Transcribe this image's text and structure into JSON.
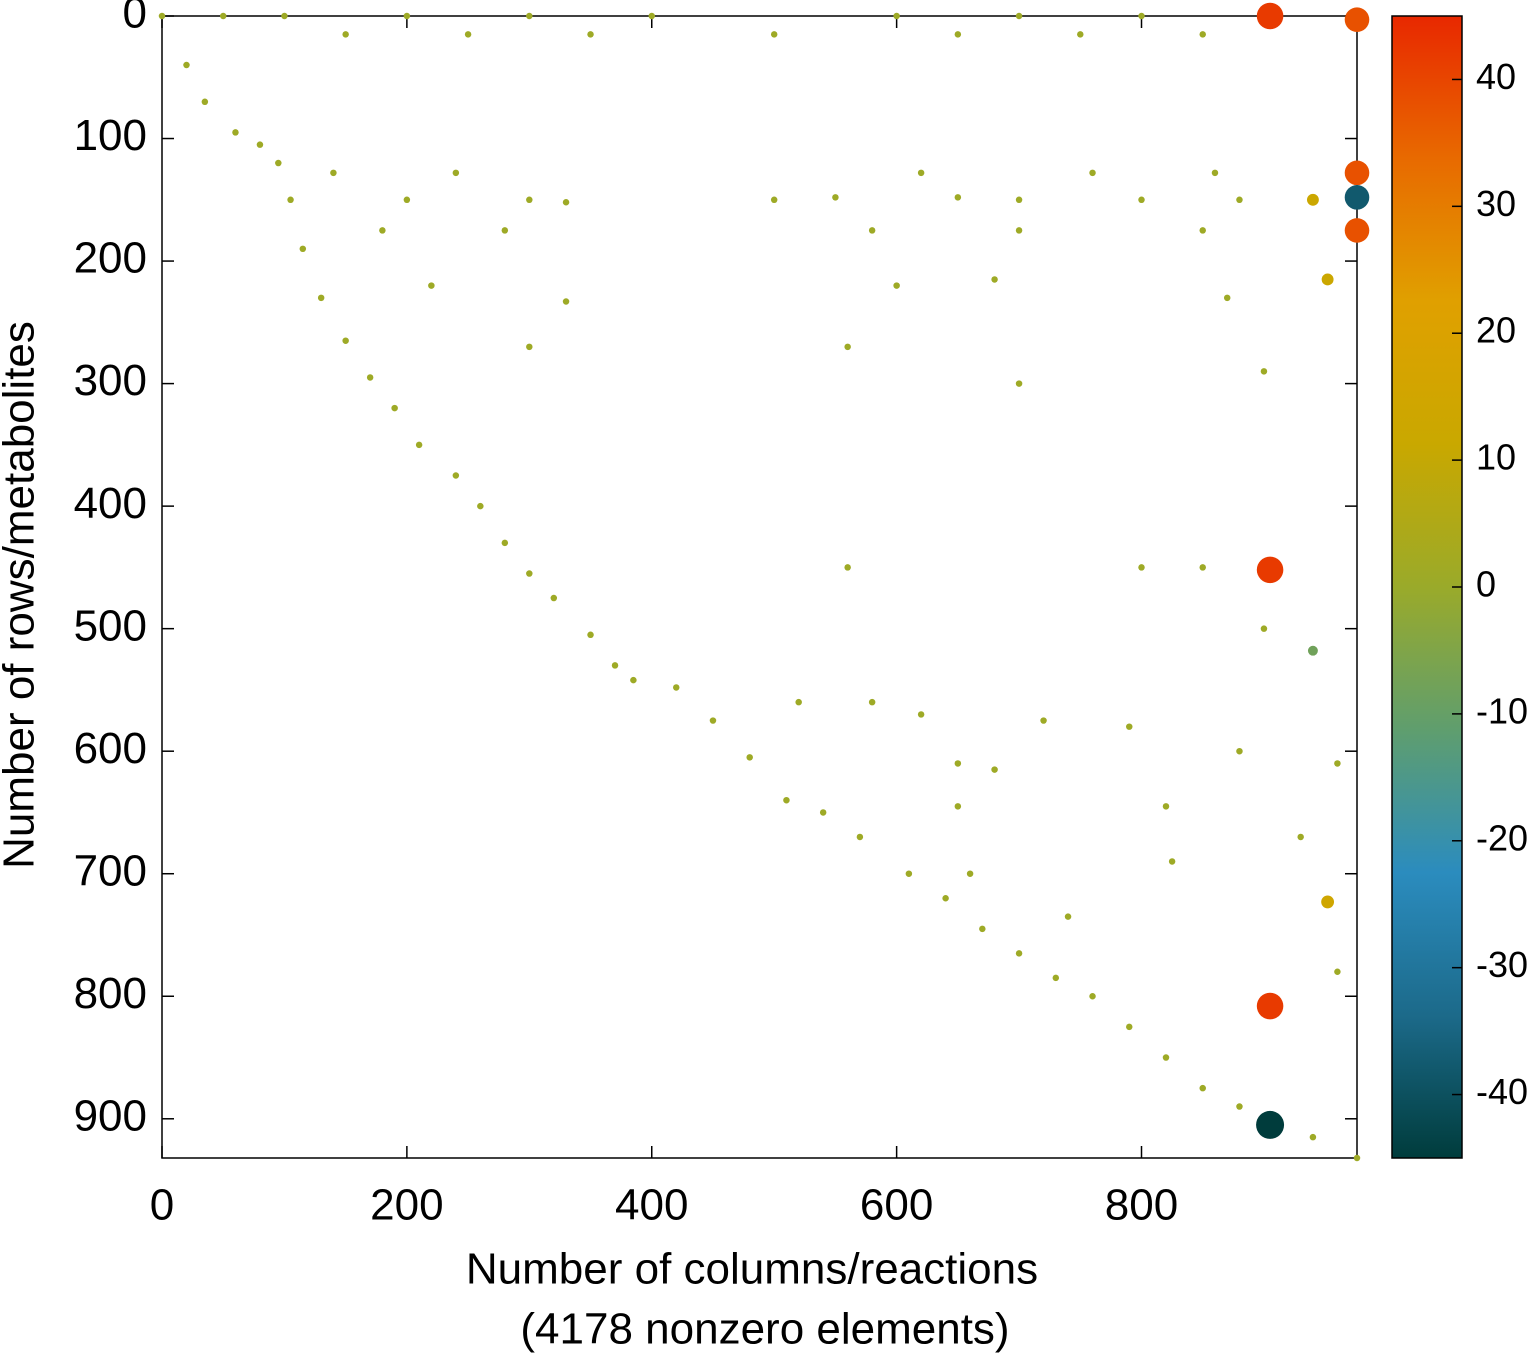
{
  "chart_data": {
    "type": "scatter",
    "xlabel": "Number of columns/reactions",
    "xlabel_note": "(4178 nonzero elements)",
    "ylabel": "Number of rows/metabolites",
    "xlim": [
      0,
      976
    ],
    "xticks": [
      0,
      200,
      400,
      600,
      800
    ],
    "ylim": [
      0,
      932
    ],
    "yticks": [
      0,
      100,
      200,
      300,
      400,
      500,
      600,
      700,
      800,
      900
    ],
    "y_reversed": true,
    "x": [
      0,
      20,
      35,
      60,
      80,
      95,
      105,
      115,
      130,
      150,
      170,
      190,
      210,
      240,
      260,
      280,
      300,
      320,
      350,
      370,
      385,
      420,
      450,
      480,
      510,
      540,
      570,
      610,
      640,
      670,
      700,
      730,
      760,
      790,
      820,
      850,
      880,
      910,
      940,
      976,
      50,
      100,
      200,
      300,
      400,
      500,
      600,
      700,
      800,
      150,
      250,
      350,
      650,
      750,
      850,
      200,
      300,
      330,
      500,
      550,
      650,
      700,
      800,
      880,
      180,
      280,
      580,
      700,
      850,
      140,
      240,
      620,
      760,
      860,
      220,
      330,
      600,
      680,
      870,
      300,
      560,
      700,
      900,
      560,
      800,
      850,
      900,
      520,
      580,
      620,
      720,
      790,
      880,
      960,
      650,
      680,
      650,
      820,
      660,
      740,
      825,
      930,
      960,
      905,
      976,
      976,
      976,
      976,
      905,
      905,
      905,
      940,
      940,
      952,
      952
    ],
    "y": [
      0,
      40,
      70,
      95,
      105,
      120,
      150,
      190,
      230,
      265,
      295,
      320,
      350,
      375,
      400,
      430,
      455,
      475,
      505,
      530,
      542,
      548,
      575,
      605,
      640,
      650,
      670,
      700,
      720,
      745,
      765,
      785,
      800,
      825,
      850,
      875,
      890,
      905,
      915,
      932,
      0,
      0,
      0,
      0,
      0,
      15,
      0,
      0,
      0,
      15,
      15,
      15,
      15,
      15,
      15,
      150,
      150,
      152,
      150,
      148,
      148,
      150,
      150,
      150,
      175,
      175,
      175,
      175,
      175,
      128,
      128,
      128,
      128,
      128,
      220,
      233,
      220,
      215,
      230,
      270,
      270,
      300,
      290,
      450,
      450,
      450,
      500,
      560,
      560,
      570,
      575,
      580,
      600,
      610,
      610,
      615,
      645,
      645,
      700,
      735,
      690,
      670,
      780,
      0,
      3,
      128,
      148,
      175,
      452,
      808,
      905,
      150,
      518,
      723,
      215
    ],
    "c": [
      1,
      1,
      1,
      1,
      1,
      1,
      1,
      1,
      1,
      1,
      1,
      1,
      1,
      1,
      1,
      1,
      1,
      1,
      1,
      1,
      1,
      1,
      1,
      1,
      1,
      1,
      1,
      1,
      1,
      1,
      1,
      1,
      1,
      1,
      1,
      1,
      1,
      1,
      1,
      1,
      1,
      1,
      1,
      1,
      1,
      1,
      1,
      1,
      1,
      1,
      1,
      1,
      1,
      1,
      1,
      1,
      1,
      1,
      1,
      1,
      1,
      1,
      1,
      1,
      1,
      1,
      1,
      1,
      1,
      1,
      1,
      1,
      1,
      1,
      1,
      1,
      1,
      1,
      1,
      1,
      1,
      1,
      1,
      1,
      1,
      1,
      1,
      1,
      1,
      1,
      1,
      1,
      1,
      1,
      1,
      1,
      1,
      1,
      1,
      1,
      1,
      1,
      1,
      42,
      38,
      38,
      -38,
      38,
      42,
      42,
      -45,
      12,
      -8,
      14,
      12
    ],
    "colorbar": {
      "lim": [
        -45,
        45
      ],
      "ticks": [
        -40,
        -30,
        -20,
        -10,
        0,
        10,
        20,
        30,
        40
      ],
      "colors": [
        "#003c3c",
        "#1c6a8a",
        "#2b8cbe",
        "#5f9e6e",
        "#9aaa2a",
        "#c9a800",
        "#e0a000",
        "#e86a00",
        "#e82800"
      ]
    }
  }
}
